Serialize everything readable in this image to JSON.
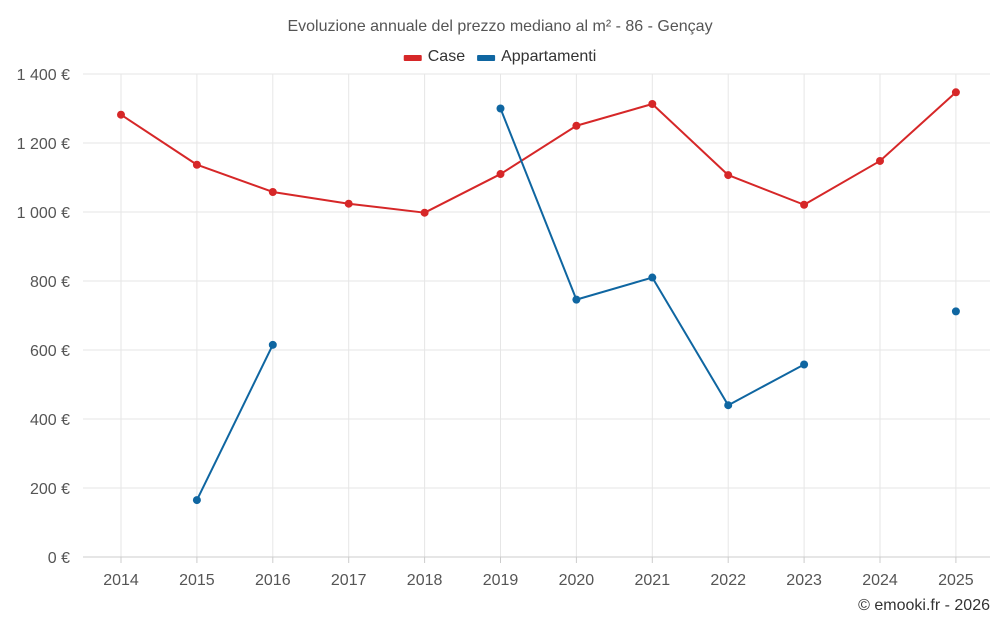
{
  "chart_data": {
    "type": "line",
    "title": "Evoluzione annuale del prezzo mediano al m² - 86 - Gençay",
    "categories": [
      "2014",
      "2015",
      "2016",
      "2017",
      "2018",
      "2019",
      "2020",
      "2021",
      "2022",
      "2023",
      "2024",
      "2025"
    ],
    "y_ticks": [
      "0 €",
      "200 €",
      "400 €",
      "600 €",
      "800 €",
      "1 000 €",
      "1 200 €",
      "1 400 €"
    ],
    "ylim": [
      0,
      1400
    ],
    "grid": true,
    "legend_position": "top",
    "series": [
      {
        "name": "Case",
        "color": "#d62728",
        "values": [
          1282,
          1137,
          1058,
          1024,
          998,
          1110,
          1250,
          1313,
          1107,
          1021,
          1148,
          1347
        ]
      },
      {
        "name": "Appartamenti",
        "color": "#0f66a1",
        "values": [
          null,
          165,
          615,
          null,
          null,
          1300,
          746,
          810,
          440,
          558,
          null,
          712
        ]
      }
    ]
  },
  "credit": "© emooki.fr - 2026"
}
